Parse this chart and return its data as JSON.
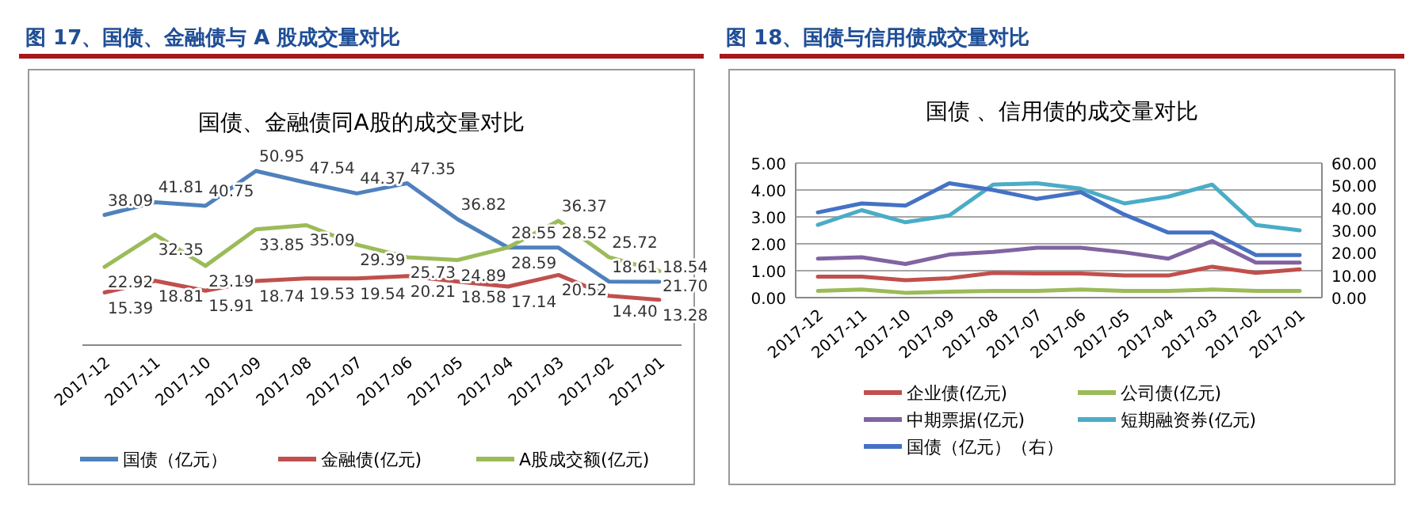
{
  "chart_data": [
    {
      "type": "line",
      "title": "图 17、国债、金融债与 A 股成交量对比",
      "subtitle": "国债、金融债同A股的成交量对比",
      "categories": [
        "2017-12",
        "2017-11",
        "2017-10",
        "2017-09",
        "2017-08",
        "2017-07",
        "2017-06",
        "2017-05",
        "2017-04",
        "2017-03",
        "2017-02",
        "2017-01"
      ],
      "series": [
        {
          "name": "国债（亿元）",
          "color": "#4f81bd",
          "values": [
            38.09,
            41.81,
            40.75,
            50.95,
            47.54,
            44.37,
            47.35,
            36.82,
            28.55,
            28.52,
            18.61,
            18.54
          ],
          "value_labels": [
            "38.09",
            "41.81",
            "40.75",
            "50.95",
            "47.54",
            "44.37",
            "47.35",
            "36.82",
            "28.55",
            "28.52",
            "18.61",
            "18.54"
          ]
        },
        {
          "name": "金融债(亿元)",
          "color": "#c0504d",
          "values": [
            15.39,
            18.81,
            15.91,
            18.74,
            19.53,
            19.54,
            20.21,
            18.58,
            17.14,
            20.52,
            14.4,
            13.28
          ],
          "value_labels": [
            "15.39",
            "18.81",
            "15.91",
            "18.74",
            "19.53",
            "19.54",
            "20.21",
            "18.58",
            "17.14",
            "20.52",
            "14.40",
            "13.28"
          ]
        },
        {
          "name": "A股成交额(亿元)",
          "color": "#9bbb59",
          "values": [
            22.92,
            32.35,
            23.19,
            33.85,
            35.09,
            29.39,
            25.73,
            24.89,
            28.59,
            36.37,
            25.72,
            21.7
          ],
          "value_labels": [
            "22.92",
            "32.35",
            "23.19",
            "33.85",
            "35.09",
            "29.39",
            "25.73",
            "24.89",
            "28.59",
            "36.37",
            "25.72",
            "21.70"
          ]
        }
      ],
      "legend": "bottom",
      "grid": false
    },
    {
      "type": "line",
      "title": "图 18、国债与信用债成交量对比",
      "subtitle": "国债 、信用债的成交量对比",
      "categories": [
        "2017-12",
        "2017-11",
        "2017-10",
        "2017-09",
        "2017-08",
        "2017-07",
        "2017-06",
        "2017-05",
        "2017-04",
        "2017-03",
        "2017-02",
        "2017-01"
      ],
      "series": [
        {
          "name": "企业债(亿元)",
          "color": "#c0504d",
          "values": [
            0.78,
            0.78,
            0.65,
            0.72,
            0.92,
            0.9,
            0.9,
            0.82,
            0.82,
            1.15,
            0.92,
            1.05
          ]
        },
        {
          "name": "公司债(亿元)",
          "color": "#9bbb59",
          "values": [
            0.25,
            0.3,
            0.18,
            0.22,
            0.25,
            0.25,
            0.3,
            0.25,
            0.25,
            0.3,
            0.25,
            0.25
          ]
        },
        {
          "name": "中期票据(亿元)",
          "color": "#8064a2",
          "values": [
            1.45,
            1.5,
            1.25,
            1.6,
            1.7,
            1.85,
            1.85,
            1.68,
            1.45,
            2.1,
            1.3,
            1.3
          ]
        },
        {
          "name": "短期融资券(亿元)",
          "color": "#4bacc6",
          "values": [
            2.7,
            3.25,
            2.8,
            3.05,
            4.2,
            4.25,
            4.05,
            3.5,
            3.75,
            4.2,
            2.7,
            2.5
          ]
        },
        {
          "name": "国债（亿元）（右）",
          "color": "#4472c4",
          "axis": "y2",
          "values": [
            38,
            42,
            41,
            51,
            48,
            44,
            47,
            37,
            29,
            29,
            19,
            19
          ]
        }
      ],
      "ylim": [
        0,
        5
      ],
      "yticks": [
        {
          "value": 0,
          "label": "0.00"
        },
        {
          "value": 1,
          "label": "1.00"
        },
        {
          "value": 2,
          "label": "2.00"
        },
        {
          "value": 3,
          "label": "3.00"
        },
        {
          "value": 4,
          "label": "4.00"
        },
        {
          "value": 5,
          "label": "5.00"
        }
      ],
      "y2lim": [
        0,
        60
      ],
      "y2ticks": [
        {
          "value": 0,
          "label": "0.00"
        },
        {
          "value": 10,
          "label": "10.00"
        },
        {
          "value": 20,
          "label": "20.00"
        },
        {
          "value": 30,
          "label": "30.00"
        },
        {
          "value": 40,
          "label": "40.00"
        },
        {
          "value": 50,
          "label": "50.00"
        },
        {
          "value": 60,
          "label": "60.00"
        }
      ],
      "grid": "y",
      "legend": "bottom"
    }
  ]
}
